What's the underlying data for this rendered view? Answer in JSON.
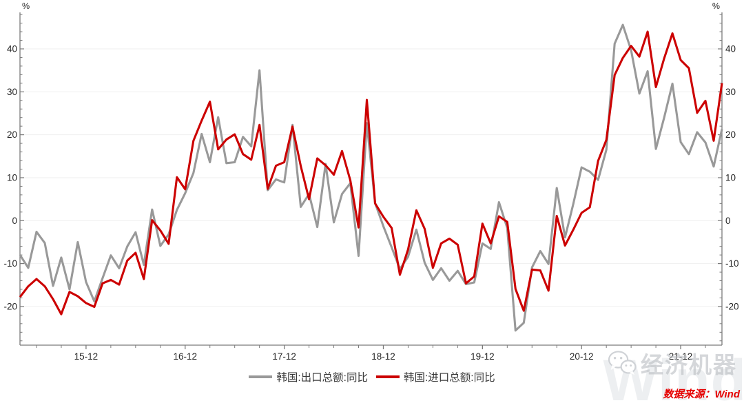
{
  "chart_data": {
    "type": "line",
    "title": "",
    "grid": "horizontal",
    "legend_position": "bottom-center",
    "y_axis": {
      "unit": "%",
      "range": [
        -29,
        48.5
      ],
      "ticks": [
        -20,
        -10,
        0,
        10,
        20,
        30,
        40
      ],
      "minor_tick_step": 2,
      "mirrored_right": true
    },
    "x_axis": {
      "minor_tick_step_months": 3,
      "ticks": [
        {
          "label": "15-12",
          "month": "2015-12"
        },
        {
          "label": "16-12",
          "month": "2016-12"
        },
        {
          "label": "17-12",
          "month": "2017-12"
        },
        {
          "label": "18-12",
          "month": "2018-12"
        },
        {
          "label": "19-12",
          "month": "2019-12"
        },
        {
          "label": "20-12",
          "month": "2020-12"
        },
        {
          "label": "21-12",
          "month": "2021-12"
        }
      ]
    },
    "months": [
      "2015-04",
      "2015-05",
      "2015-06",
      "2015-07",
      "2015-08",
      "2015-09",
      "2015-10",
      "2015-11",
      "2015-12",
      "2016-01",
      "2016-02",
      "2016-03",
      "2016-04",
      "2016-05",
      "2016-06",
      "2016-07",
      "2016-08",
      "2016-09",
      "2016-10",
      "2016-11",
      "2016-12",
      "2017-01",
      "2017-02",
      "2017-03",
      "2017-04",
      "2017-05",
      "2017-06",
      "2017-07",
      "2017-08",
      "2017-09",
      "2017-10",
      "2017-11",
      "2017-12",
      "2018-01",
      "2018-02",
      "2018-03",
      "2018-04",
      "2018-05",
      "2018-06",
      "2018-07",
      "2018-08",
      "2018-09",
      "2018-10",
      "2018-11",
      "2018-12",
      "2019-01",
      "2019-02",
      "2019-03",
      "2019-04",
      "2019-05",
      "2019-06",
      "2019-07",
      "2019-08",
      "2019-09",
      "2019-10",
      "2019-11",
      "2019-12",
      "2020-01",
      "2020-02",
      "2020-03",
      "2020-04",
      "2020-05",
      "2020-06",
      "2020-07",
      "2020-08",
      "2020-09",
      "2020-10",
      "2020-11",
      "2020-12",
      "2021-01",
      "2021-02",
      "2021-03",
      "2021-04",
      "2021-05",
      "2021-06",
      "2021-07",
      "2021-08",
      "2021-09",
      "2021-10",
      "2021-11",
      "2021-12",
      "2022-01",
      "2022-02",
      "2022-03",
      "2022-04",
      "2022-05"
    ],
    "series": [
      {
        "id": "exports",
        "name": "韩国:出口总额:同比",
        "color": "#999999",
        "values": [
          -8.0,
          -11.0,
          -2.6,
          -5.2,
          -15.2,
          -8.6,
          -16.0,
          -5.0,
          -14.3,
          -18.8,
          -13.4,
          -8.1,
          -11.1,
          -6.0,
          -2.7,
          -10.3,
          2.6,
          -5.9,
          -3.2,
          2.5,
          6.4,
          11.1,
          20.2,
          13.6,
          24.1,
          13.4,
          13.6,
          19.5,
          17.3,
          35.0,
          7.1,
          9.6,
          8.9,
          22.3,
          3.2,
          6.2,
          -1.5,
          13.2,
          -0.4,
          6.2,
          8.7,
          -8.2,
          22.7,
          4.1,
          -1.3,
          -6.2,
          -11.3,
          -8.4,
          -2.1,
          -9.8,
          -13.8,
          -11.1,
          -14.0,
          -11.7,
          -14.8,
          -14.4,
          -5.3,
          -6.6,
          4.3,
          -1.7,
          -25.6,
          -23.8,
          -10.9,
          -7.1,
          -10.1,
          7.6,
          -3.9,
          3.9,
          12.4,
          11.4,
          9.5,
          16.5,
          41.2,
          45.6,
          39.7,
          29.6,
          34.8,
          16.7,
          24.0,
          31.9,
          18.3,
          15.5,
          20.6,
          18.2,
          12.6,
          21.3
        ]
      },
      {
        "id": "imports",
        "name": "韩国:进口总额:同比",
        "color": "#cc0000",
        "values": [
          -17.8,
          -15.3,
          -13.6,
          -15.3,
          -18.3,
          -21.8,
          -16.6,
          -17.6,
          -19.2,
          -20.1,
          -14.6,
          -13.8,
          -14.9,
          -9.3,
          -7.5,
          -13.6,
          0.1,
          -2.3,
          -5.4,
          10.1,
          7.3,
          18.6,
          23.3,
          27.7,
          16.6,
          18.9,
          20.1,
          15.5,
          14.2,
          22.3,
          7.4,
          12.8,
          13.6,
          21.9,
          12.7,
          5.0,
          14.5,
          12.9,
          10.7,
          16.2,
          9.4,
          -1.6,
          28.1,
          4.0,
          0.9,
          -1.7,
          -12.6,
          -6.7,
          2.4,
          -1.9,
          -11.0,
          -5.3,
          -4.2,
          -5.6,
          -14.6,
          -13.0,
          -0.7,
          -5.3,
          1.0,
          -0.3,
          -15.9,
          -21.0,
          -11.4,
          -11.6,
          -16.3,
          1.1,
          -5.8,
          -2.1,
          1.8,
          3.1,
          13.9,
          18.8,
          33.9,
          37.9,
          40.7,
          38.2,
          44.0,
          31.1,
          37.8,
          43.6,
          37.4,
          35.5,
          25.1,
          27.9,
          18.6,
          32.0
        ]
      }
    ]
  },
  "watermark": {
    "brand": "经济机器",
    "wind": "Wind"
  },
  "source": {
    "label": "数据来源：Wind"
  }
}
